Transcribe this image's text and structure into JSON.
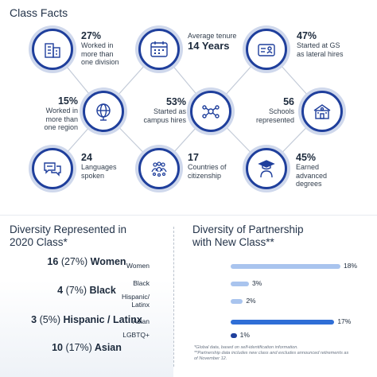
{
  "title": "Class Facts",
  "stats": {
    "worked_division": {
      "value": "27%",
      "text": [
        "Worked in",
        "more than",
        "one division"
      ],
      "icon": "building-icon"
    },
    "tenure": {
      "label": "Average tenure",
      "value": "14 Years",
      "icon": "calendar-icon"
    },
    "lateral": {
      "value": "47%",
      "text": [
        "Started at GS",
        "as lateral hires"
      ],
      "icon": "id-card-icon"
    },
    "region": {
      "value": "15%",
      "text": [
        "Worked in",
        "more than",
        "one region"
      ],
      "icon": "globe-icon"
    },
    "campus": {
      "value": "53%",
      "text": [
        "Started as",
        "campus hires"
      ],
      "icon": "people-network-icon"
    },
    "schools": {
      "value": "56",
      "text": [
        "Schools",
        "represented"
      ],
      "icon": "school-icon"
    },
    "languages": {
      "value": "24",
      "text": [
        "Languages",
        "spoken"
      ],
      "icon": "speech-bubbles-icon"
    },
    "countries": {
      "value": "17",
      "text": [
        "Countries of",
        "citizenship"
      ],
      "icon": "crowd-icon"
    },
    "degrees": {
      "value": "45%",
      "text": [
        "Earned",
        "advanced",
        "degrees"
      ],
      "icon": "graduate-icon"
    }
  },
  "diversity": {
    "title": [
      "Diversity Represented in",
      "2020 Class*"
    ],
    "rows": [
      {
        "count": "16",
        "pct": "(27%)",
        "label": "Women"
      },
      {
        "count": "4",
        "pct": "(7%)",
        "label": "Black"
      },
      {
        "count": "3",
        "pct": "(5%)",
        "label": "Hispanic / Latinx"
      },
      {
        "count": "10",
        "pct": "(17%)",
        "label": "Asian"
      }
    ]
  },
  "partnership": {
    "title": [
      "Diversity of Partnership",
      "with New Class**"
    ]
  },
  "chart_data": {
    "type": "bar",
    "orientation": "horizontal",
    "categories": [
      "Women",
      "Black",
      "Hispanic/ Latinx",
      "Asian",
      "LGBTQ+"
    ],
    "values": [
      18,
      3,
      2,
      17,
      1
    ],
    "value_labels": [
      "18%",
      "3%",
      "2%",
      "17%",
      "1%"
    ],
    "bar_colors": [
      "#a9c4ee",
      "#a9c4ee",
      "#a9c4ee",
      "#2f6ed6",
      "#1f3f9c"
    ],
    "xlim": [
      0,
      18
    ]
  },
  "footnotes": [
    "*Global data, based on self-identification information.",
    "**Partnership data includes new class and excludes announced retirements as",
    "of November 12."
  ],
  "colors": {
    "navy": "#1f3f9c",
    "ring": "#cfd8ec",
    "line": "#c3cbd8"
  }
}
